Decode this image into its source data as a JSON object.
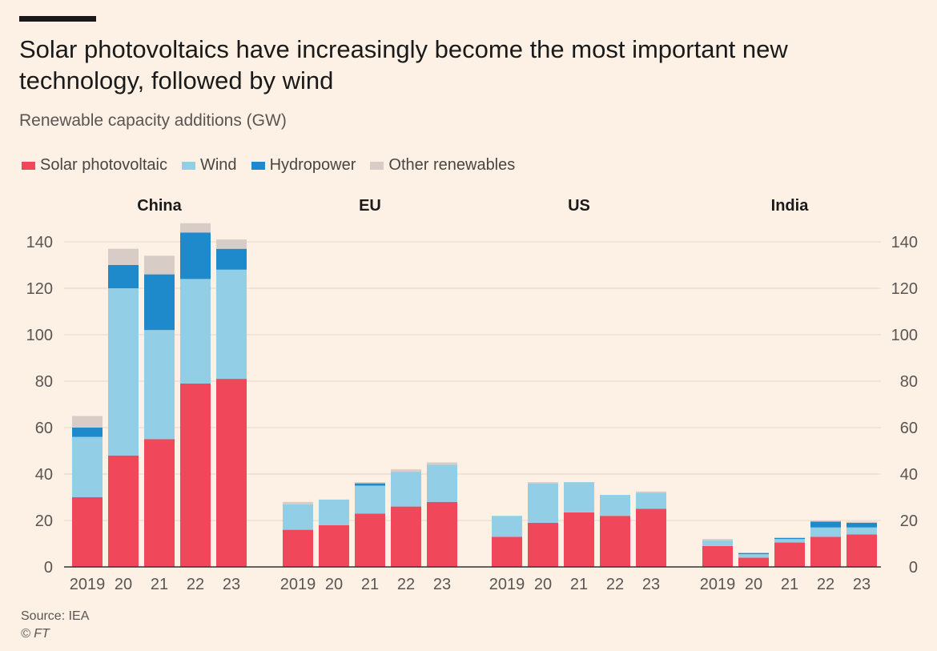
{
  "title": "Solar photovoltaics have increasingly become the most important new technology, followed by wind",
  "subtitle": "Renewable capacity additions (GW)",
  "source": "Source: IEA",
  "credit": "© FT",
  "colors": {
    "background": "#fdf1e5",
    "solar": "#f0485a",
    "wind": "#92cfe6",
    "hydro": "#1f8acb",
    "other": "#d8cdc6",
    "grid": "#e3d7cc",
    "axis": "#333333",
    "tick": "#5a5552"
  },
  "chart_data": {
    "type": "bar",
    "stacked": true,
    "ylim": [
      0,
      150
    ],
    "yticks": [
      0,
      20,
      40,
      60,
      80,
      100,
      120,
      140
    ],
    "grid": true,
    "legend_position": "top-left",
    "series_names": [
      "Solar photovoltaic",
      "Wind",
      "Hydropower",
      "Other renewables"
    ],
    "panels": [
      {
        "name": "China",
        "categories": [
          "2019",
          "20",
          "21",
          "22",
          "23"
        ],
        "series": [
          {
            "name": "Solar photovoltaic",
            "values": [
              30,
              48,
              55,
              79,
              81
            ]
          },
          {
            "name": "Wind",
            "values": [
              26,
              72,
              47,
              45,
              47
            ]
          },
          {
            "name": "Hydropower",
            "values": [
              4,
              10,
              24,
              20,
              9
            ]
          },
          {
            "name": "Other renewables",
            "values": [
              5,
              7,
              8,
              4,
              4
            ]
          }
        ]
      },
      {
        "name": "EU",
        "categories": [
          "2019",
          "20",
          "21",
          "22",
          "23"
        ],
        "series": [
          {
            "name": "Solar photovoltaic",
            "values": [
              16,
              18,
              23,
              26,
              28
            ]
          },
          {
            "name": "Wind",
            "values": [
              11,
              11,
              12,
              15,
              16
            ]
          },
          {
            "name": "Hydropower",
            "values": [
              0,
              0,
              1,
              0,
              0
            ]
          },
          {
            "name": "Other renewables",
            "values": [
              1,
              0,
              0.5,
              1,
              1
            ]
          }
        ]
      },
      {
        "name": "US",
        "categories": [
          "2019",
          "20",
          "21",
          "22",
          "23"
        ],
        "series": [
          {
            "name": "Solar photovoltaic",
            "values": [
              13,
              19,
              23.5,
              22,
              25
            ]
          },
          {
            "name": "Wind",
            "values": [
              9,
              17,
              13,
              9,
              7
            ]
          },
          {
            "name": "Hydropower",
            "values": [
              0,
              0,
              0,
              0,
              0
            ]
          },
          {
            "name": "Other renewables",
            "values": [
              0,
              0.5,
              0,
              0,
              0.5
            ]
          }
        ]
      },
      {
        "name": "India",
        "categories": [
          "2019",
          "20",
          "21",
          "22",
          "23"
        ],
        "series": [
          {
            "name": "Solar photovoltaic",
            "values": [
              9,
              4,
              10.5,
              13,
              14
            ]
          },
          {
            "name": "Wind",
            "values": [
              2.5,
              1.5,
              1.5,
              4,
              3
            ]
          },
          {
            "name": "Hydropower",
            "values": [
              0,
              0.5,
              0.5,
              2.5,
              2
            ]
          },
          {
            "name": "Other renewables",
            "values": [
              0.5,
              0,
              0,
              0.5,
              0.5
            ]
          }
        ]
      }
    ]
  }
}
